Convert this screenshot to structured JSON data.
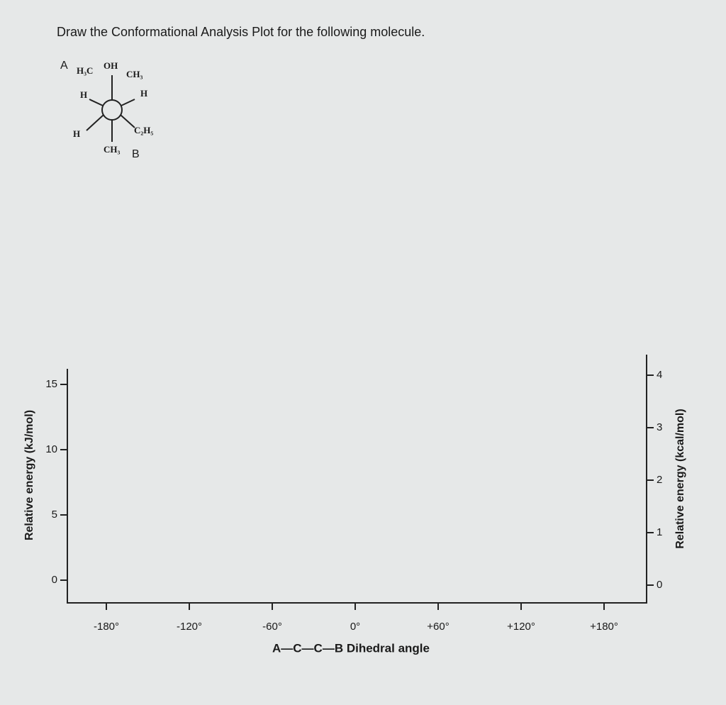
{
  "question": "Draw the Conformational Analysis Plot for the following molecule.",
  "newman": {
    "front_label": "A",
    "back_label": "B",
    "groups": [
      "H₃C",
      "OH",
      "CH₃",
      "H",
      "H",
      "H",
      "C₂H₅",
      "CH₃"
    ]
  },
  "plot": {
    "y_label": "Relative energy (kJ/mol)",
    "y2_label": "Relative energy (kcal/mol)",
    "x_label": "A—C—C—B Dihedral angle",
    "x_ticks": [
      "-180°",
      "-120°",
      "-60°",
      "0°",
      "+60°",
      "+120°",
      "+180°"
    ],
    "y_ticks": [
      "0",
      "5",
      "10",
      "15"
    ],
    "y2_ticks": [
      "0",
      "1",
      "2",
      "3",
      "4"
    ]
  }
}
